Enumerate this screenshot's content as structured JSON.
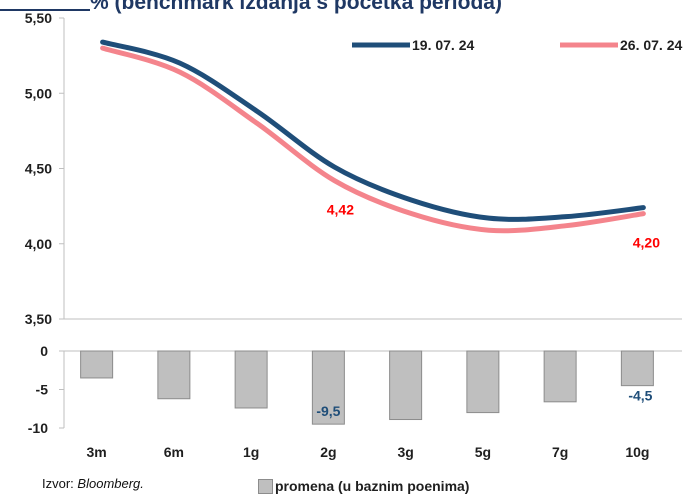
{
  "title_fragment": "% (benchmark izdanja s početka perioda)",
  "source_label": "Izvor:",
  "source_name": "Bloomberg.",
  "colors": {
    "series1": "#1f4e79",
    "series2": "#f4848c",
    "bars": "#bfbfbf",
    "bar_border": "#8c8c8c",
    "annotation": "#ff0000",
    "grid": "#d9d9d9"
  },
  "chart_data": [
    {
      "type": "line",
      "categories": [
        "3m",
        "6m",
        "1g",
        "2g",
        "3g",
        "5g",
        "7g",
        "10g"
      ],
      "series": [
        {
          "name": "19. 07. 24",
          "values": [
            5.34,
            5.2,
            4.88,
            4.51,
            4.29,
            4.17,
            4.18,
            4.24
          ]
        },
        {
          "name": "26. 07. 24",
          "values": [
            5.3,
            5.14,
            4.8,
            4.42,
            4.2,
            4.09,
            4.12,
            4.2
          ]
        }
      ],
      "ylim": [
        3.5,
        5.5
      ],
      "yticks": [
        "3,50",
        "4,00",
        "4,50",
        "5,00",
        "5,50"
      ],
      "annotations": [
        {
          "category": "2g",
          "text": "4,42"
        },
        {
          "category": "10g",
          "text": "4,20"
        }
      ],
      "legend_position": "top-right",
      "grid": false
    },
    {
      "type": "bar",
      "categories": [
        "3m",
        "6m",
        "1g",
        "2g",
        "3g",
        "5g",
        "7g",
        "10g"
      ],
      "series": [
        {
          "name": "promena (u baznim poenima)",
          "values": [
            -3.5,
            -6.2,
            -7.4,
            -9.5,
            -8.9,
            -8.0,
            -6.6,
            -4.5
          ]
        }
      ],
      "ylim": [
        -10,
        0
      ],
      "yticks": [
        "-10",
        "-5",
        "0"
      ],
      "annotations": [
        {
          "category": "2g",
          "text": "-9,5"
        },
        {
          "category": "10g",
          "text": "-4,5"
        }
      ],
      "legend_position": "bottom",
      "grid": false
    }
  ]
}
